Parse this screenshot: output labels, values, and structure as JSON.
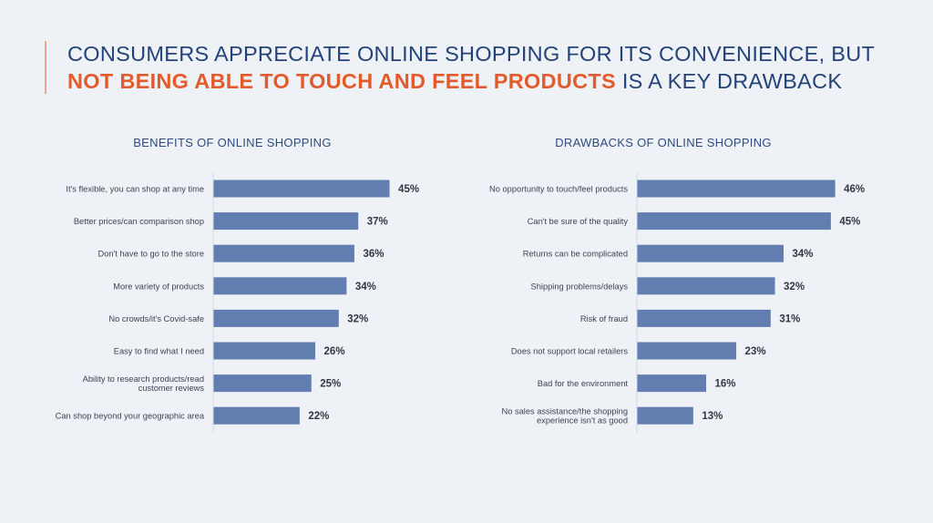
{
  "title": {
    "line1": "CONSUMERS APPRECIATE ONLINE SHOPPING FOR ITS CONVENIENCE, BUT",
    "highlight": "NOT BEING ABLE TO TOUCH AND FEEL PRODUCTS",
    "line2_rest": " IS A KEY DRAWBACK"
  },
  "colors": {
    "bar": "#627db0",
    "title": "#23427a",
    "highlight": "#e45b2b",
    "background": "#eef2f7"
  },
  "chart_data": [
    {
      "type": "bar",
      "orientation": "horizontal",
      "title": "BENEFITS OF ONLINE SHOPPING",
      "categories": [
        [
          "It's flexible, you can shop at any time"
        ],
        [
          "Better prices/can comparison shop"
        ],
        [
          "Don't have to go to the store"
        ],
        [
          "More variety of products"
        ],
        [
          "No crowds/it's Covid-safe"
        ],
        [
          "Easy to find what I need"
        ],
        [
          "Ability to research products/read",
          "customer reviews"
        ],
        [
          "Can shop beyond your geographic area"
        ]
      ],
      "values": [
        45,
        37,
        36,
        34,
        32,
        26,
        25,
        22
      ],
      "value_labels": [
        "45%",
        "37%",
        "36%",
        "34%",
        "32%",
        "26%",
        "25%",
        "22%"
      ],
      "unit": "%"
    },
    {
      "type": "bar",
      "orientation": "horizontal",
      "title": "DRAWBACKS OF ONLINE SHOPPING",
      "categories": [
        [
          "No opportunity to touch/feel products"
        ],
        [
          "Can't be sure of the quality"
        ],
        [
          "Returns can be complicated"
        ],
        [
          "Shipping problems/delays"
        ],
        [
          "Risk of fraud"
        ],
        [
          "Does not support local retailers"
        ],
        [
          "Bad for the environment"
        ],
        [
          "No sales assistance/the shopping",
          "experience isn't as good"
        ]
      ],
      "values": [
        46,
        45,
        34,
        32,
        31,
        23,
        16,
        13
      ],
      "value_labels": [
        "46%",
        "45%",
        "34%",
        "32%",
        "31%",
        "23%",
        "16%",
        "13%"
      ],
      "unit": "%"
    }
  ]
}
